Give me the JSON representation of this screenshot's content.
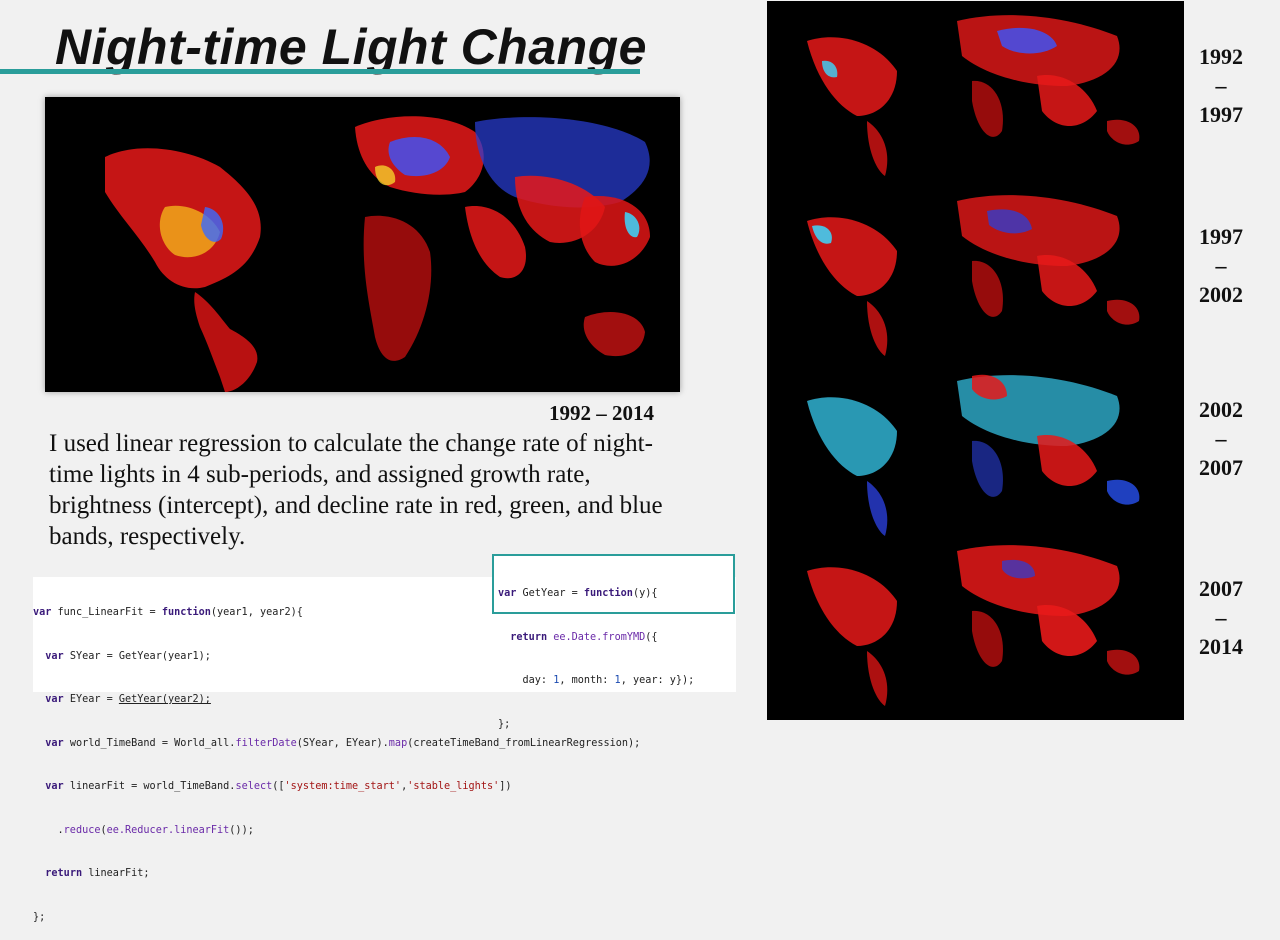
{
  "title": "Night-time Light Change",
  "main_map": {
    "caption": "1992 – 2014"
  },
  "description": "I used linear regression to calculate the change rate of night-time lights in 4 sub-periods, and assigned growth rate, brightness (intercept), and decline rate in red, green, and blue bands, respectively.",
  "code_main": [
    [
      "var func_LinearFit = function(year1, year2){"
    ],
    [
      "  var SYear = GetYear(year1);"
    ],
    [
      "  var EYear = GetYear(year2);"
    ],
    [
      "  var world_TimeBand = World_all.filterDate(SYear, EYear).map(createTimeBand_fromLinearRegression);"
    ],
    [
      "  var linearFit = world_TimeBand.select(['system:time_start','stable_lights'])"
    ],
    [
      "    .reduce(ee.Reducer.linearFit());"
    ],
    [
      "  return linearFit;"
    ],
    [
      "};"
    ]
  ],
  "code_side": [
    "var GetYear = function(y){",
    "  return ee.Date.fromYMD({",
    "    day: 1, month: 1, year: y});",
    "};"
  ],
  "periods": [
    {
      "start": "1992",
      "dash": "–",
      "end": "1997"
    },
    {
      "start": "1997",
      "dash": "–",
      "end": "2002"
    },
    {
      "start": "2002",
      "dash": "–",
      "end": "2007"
    },
    {
      "start": "2007",
      "dash": "–",
      "end": "2014"
    }
  ],
  "colors": {
    "accent": "#2a9d9a",
    "growth": "#ff1e1e",
    "brightness": "#ffe23a",
    "decline": "#2a55ff",
    "cyan": "#3ad8ff"
  }
}
